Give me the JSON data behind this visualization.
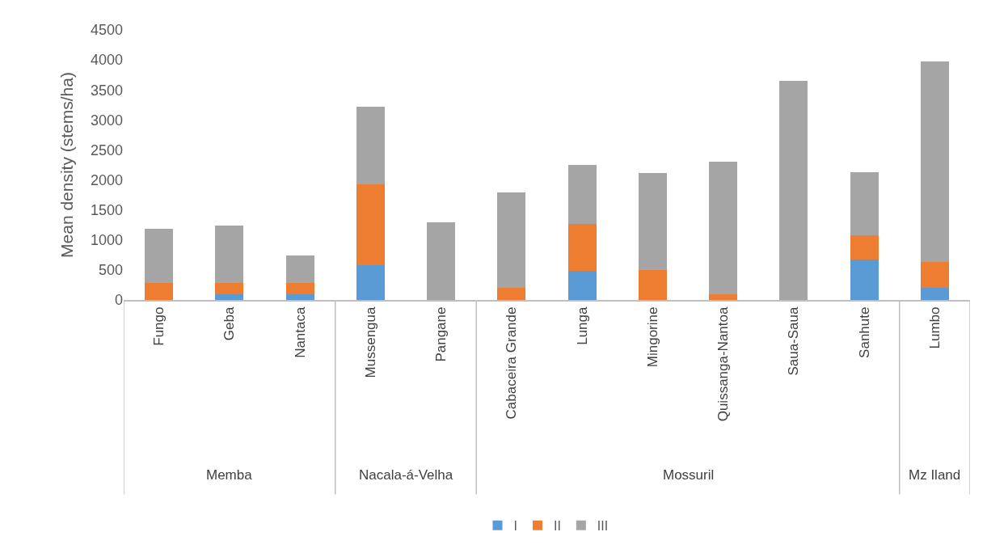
{
  "chart_data": {
    "type": "bar",
    "stacked": true,
    "ylabel": "Mean density (stems/ha)",
    "categories": [
      "Fungo",
      "Geba",
      "Nantaca",
      "Mussengua",
      "Pangane",
      "Cabaceira Grande",
      "Lunga",
      "Mingorine",
      "Quissanga-Nantoa",
      "Saua-Saua",
      "Sanhute",
      "Lumbo"
    ],
    "series": [
      {
        "name": "I",
        "color": "#5b9bd5",
        "values": [
          0,
          100,
          100,
          580,
          0,
          0,
          490,
          0,
          0,
          0,
          680,
          200
        ]
      },
      {
        "name": "II",
        "color": "#ed7d31",
        "values": [
          280,
          180,
          180,
          1350,
          0,
          200,
          770,
          500,
          100,
          0,
          400,
          440
        ]
      },
      {
        "name": "III",
        "color": "#a5a5a5",
        "values": [
          910,
          960,
          460,
          1290,
          1300,
          1590,
          990,
          1620,
          2200,
          3650,
          1050,
          3330
        ]
      }
    ],
    "annotations": [
      "Memba",
      "Nacala-á-Velha",
      "Mossuril",
      "Mz Iland"
    ],
    "ylim": [
      0,
      4500
    ],
    "yticks": [
      0,
      500,
      1000,
      1500,
      2000,
      2500,
      3000,
      3500,
      4000,
      4500
    ],
    "grid": false,
    "legend": "bottom"
  }
}
